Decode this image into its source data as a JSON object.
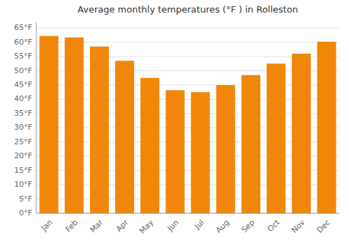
{
  "chart_data": {
    "type": "bar",
    "title": "Average monthly temperatures (°F ) in Rolleston",
    "categories": [
      "Jan",
      "Feb",
      "Mar",
      "Apr",
      "May",
      "Jun",
      "Jul",
      "Aug",
      "Sep",
      "Oct",
      "Nov",
      "Dec"
    ],
    "values": [
      62.2,
      61.7,
      58.5,
      53.5,
      47.5,
      43.2,
      42.5,
      45.0,
      48.5,
      52.5,
      56.0,
      60.2
    ],
    "color": "#F0870A",
    "ylim": [
      0,
      67
    ],
    "yticks": [
      {
        "value": 0,
        "label": "0°F"
      },
      {
        "value": 5,
        "label": "5°F"
      },
      {
        "value": 10,
        "label": "10°F"
      },
      {
        "value": 15,
        "label": "15°F"
      },
      {
        "value": 20,
        "label": "20°F"
      },
      {
        "value": 25,
        "label": "25°F"
      },
      {
        "value": 30,
        "label": "30°F"
      },
      {
        "value": 35,
        "label": "35°F"
      },
      {
        "value": 40,
        "label": "40°F"
      },
      {
        "value": 45,
        "label": "45°F"
      },
      {
        "value": 50,
        "label": "50°F"
      },
      {
        "value": 55,
        "label": "55°F"
      },
      {
        "value": 60,
        "label": "60°F"
      },
      {
        "value": 65,
        "label": "65°F"
      }
    ],
    "grid": true
  }
}
